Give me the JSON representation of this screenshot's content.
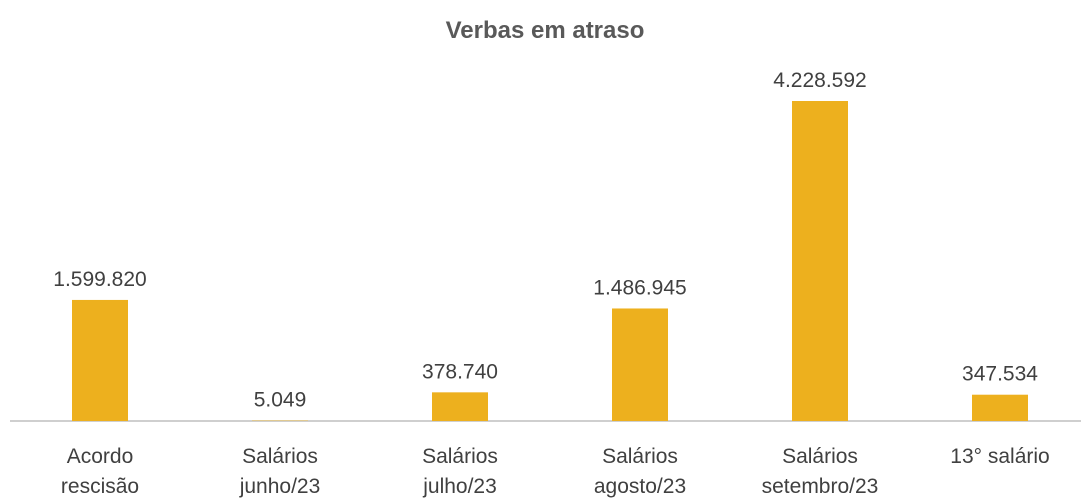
{
  "chart_data": {
    "type": "bar",
    "title": "Verbas em atraso",
    "categories": [
      "Acordo\nrescisão",
      "Salários\njunho/23",
      "Salários\njulho/23",
      "Salários\nagosto/23",
      "Salários\nsetembro/23",
      "13° salário"
    ],
    "values": [
      1599820,
      5049,
      378740,
      1486945,
      4228592,
      347534
    ],
    "value_labels": [
      "1.599.820",
      "5.049",
      "378.740",
      "1.486.945",
      "4.228.592",
      "347.534"
    ],
    "color": "#edb01e"
  }
}
